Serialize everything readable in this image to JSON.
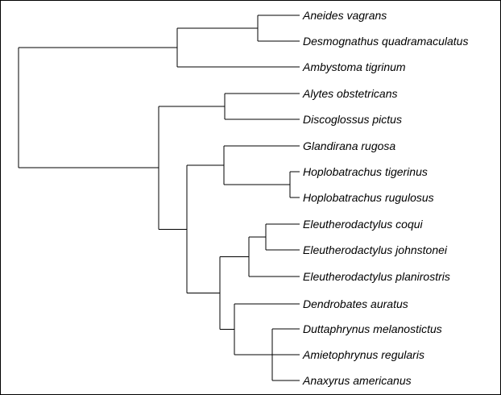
{
  "tree": {
    "taxa": [
      "Aneides vagrans",
      "Desmognathus quadramaculatus",
      "Ambystoma tigrinum",
      "Alytes obstetricans",
      "Discoglossus pictus",
      "Glandirana rugosa",
      "Hoplobatrachus tigerinus",
      "Hoplobatrachus rugulosus",
      "Eleutherodactylus coqui",
      "Eleutherodactylus johnstonei",
      "Eleutherodactylus planirostris",
      "Dendrobates auratus",
      "Duttaphrynus melanostictus",
      "Amietophrynus regularis",
      "Anaxyrus americanus"
    ],
    "newick": "(((Aneides vagrans,Desmognathus quadramaculatus),Ambystoma tigrinum),((Alytes obstetricans,Discoglossus pictus),((Glandirana rugosa,(Hoplobatrachus tigerinus,Hoplobatrachus rugulosus)),(((Eleutherodactylus coqui,Eleutherodactylus johnstonei),Eleutherodactylus planirostris),(Dendrobates auratus,(Duttaphrynus melanostictus,Amietophrynus regularis,Anaxyrus americanus))))));",
    "colors": {
      "branch": "#000000",
      "label": "#000000",
      "border": "#000000",
      "background": "#ffffff"
    }
  }
}
